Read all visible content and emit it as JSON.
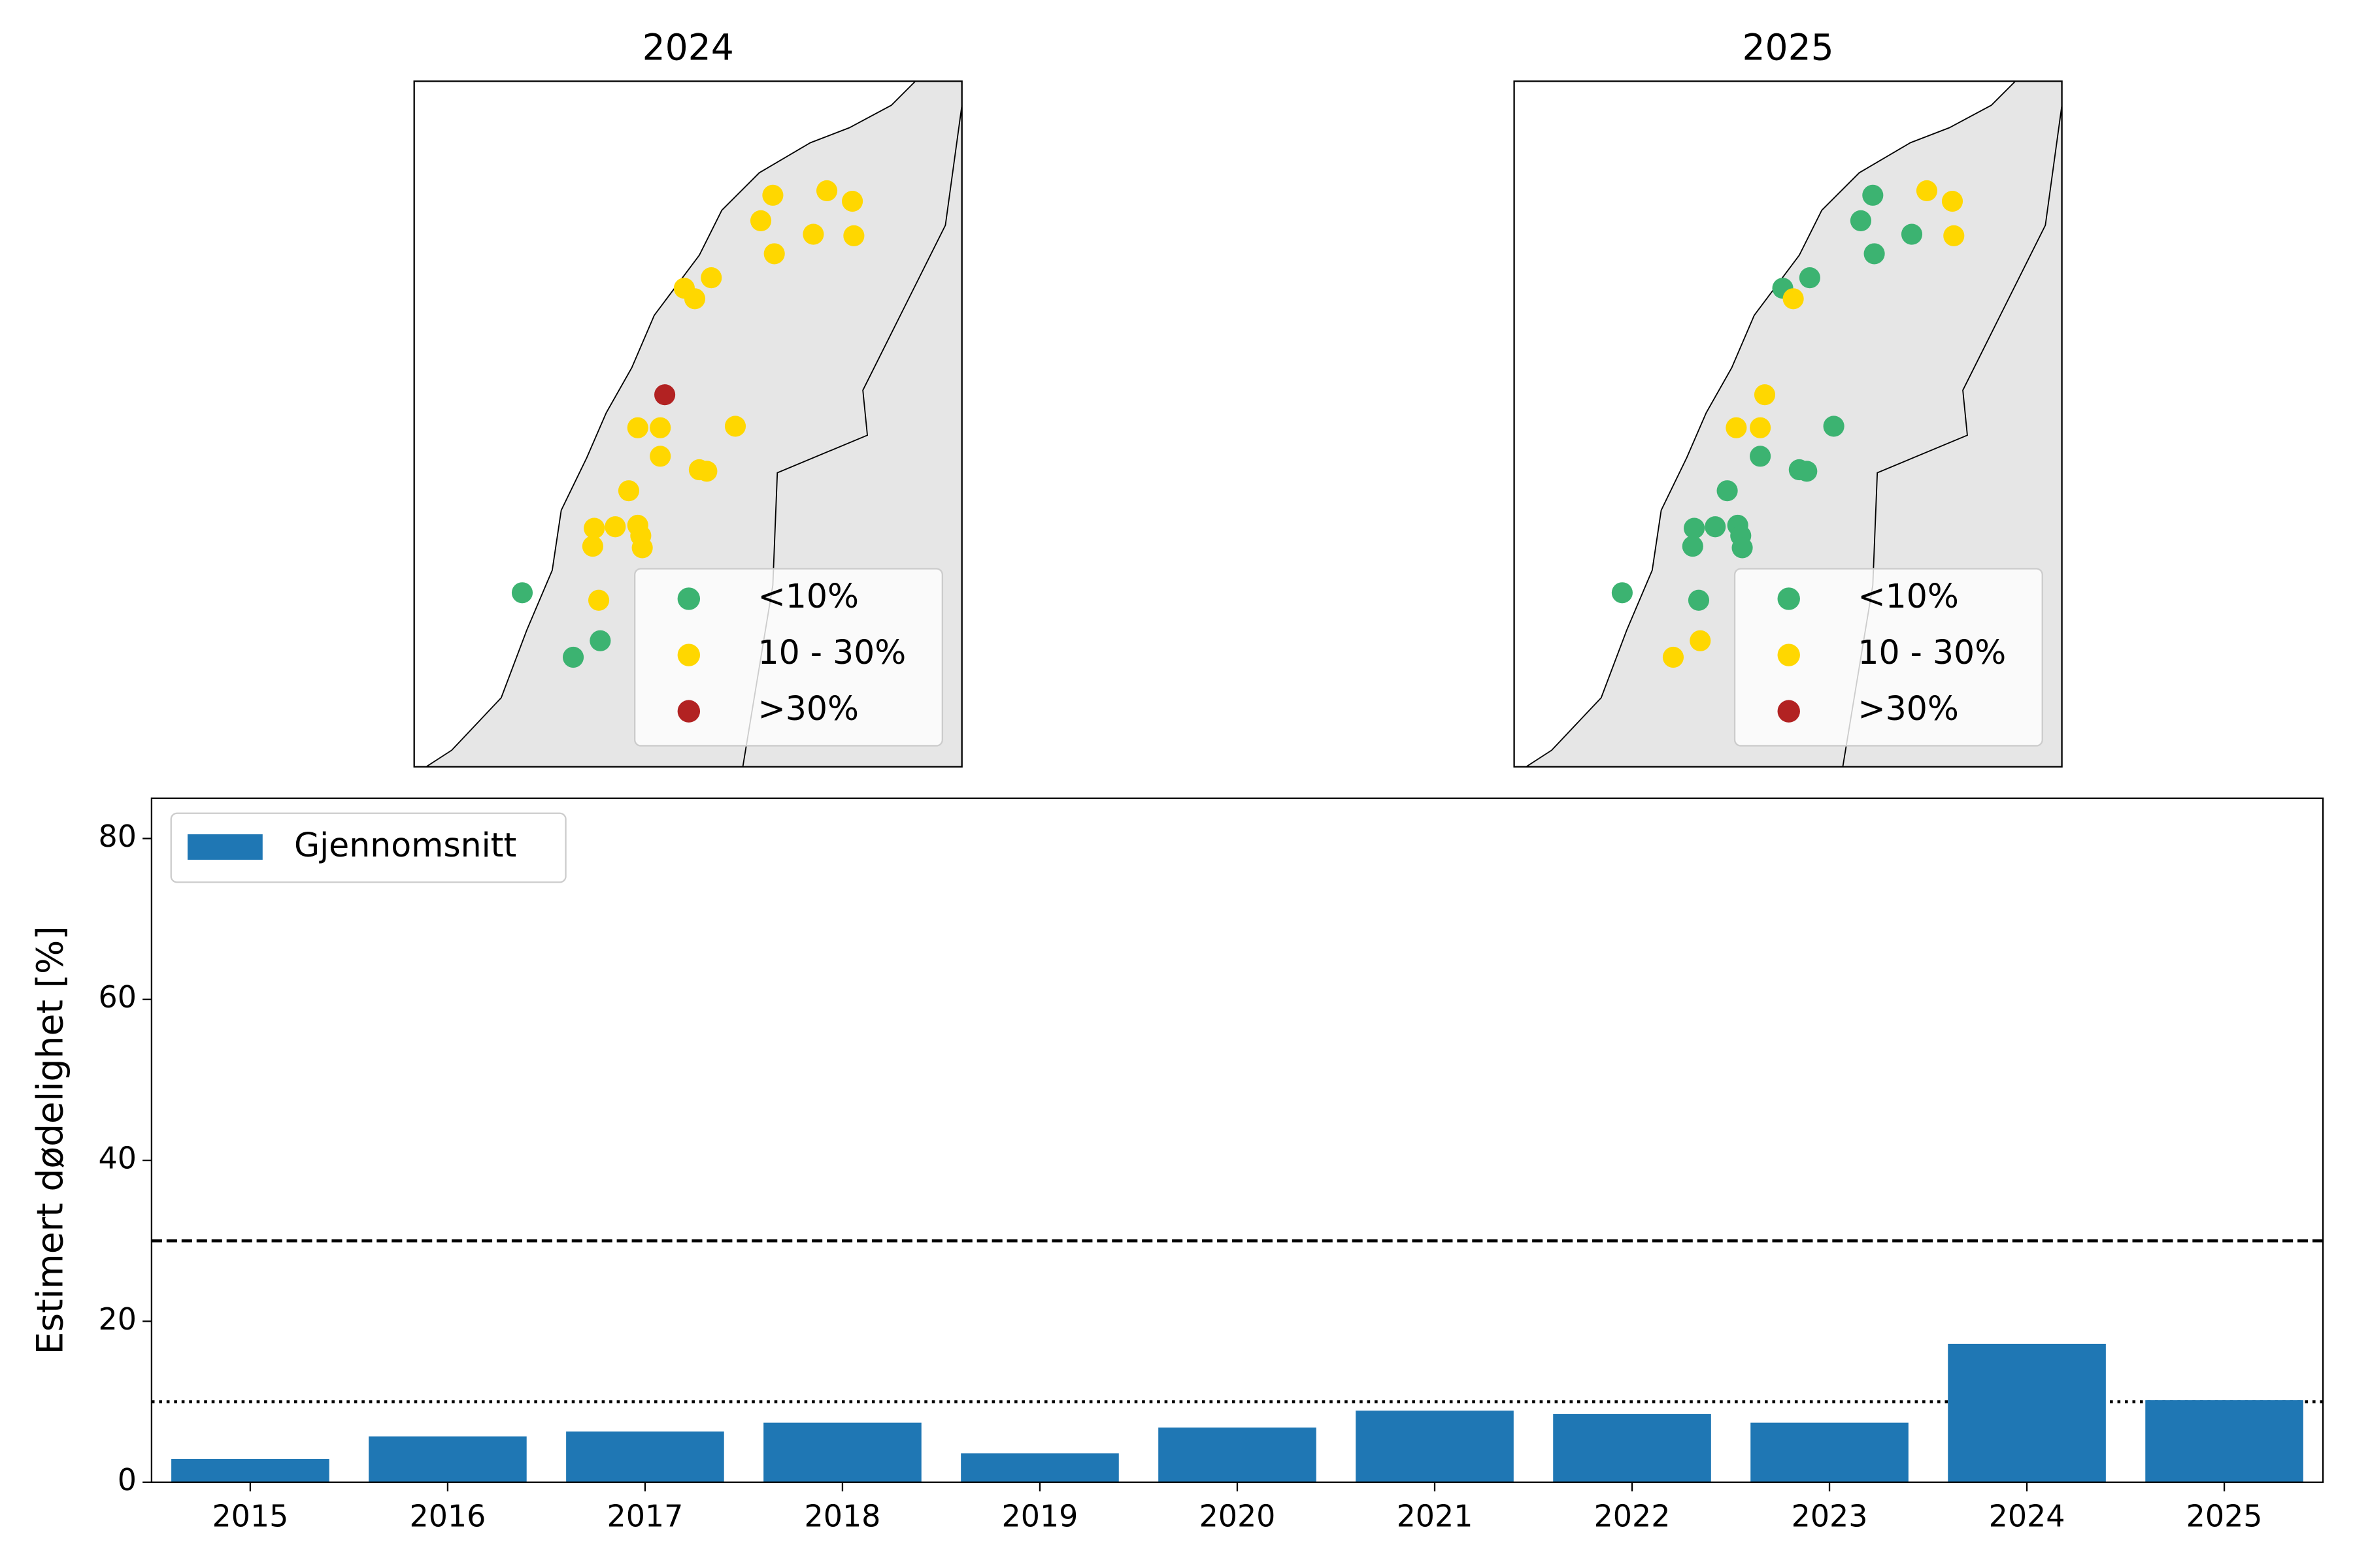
{
  "chart_data": [
    {
      "type": "map",
      "title": "2024",
      "series": [
        {
          "name": "<10%",
          "color": "#3cb371"
        },
        {
          "name": "10 - 30%",
          "color": "#ffd700"
        },
        {
          "name": ">30%",
          "color": "#b22222"
        }
      ]
    },
    {
      "type": "map",
      "title": "2025",
      "series": [
        {
          "name": "<10%",
          "color": "#3cb371"
        },
        {
          "name": "10 - 30%",
          "color": "#ffd700"
        },
        {
          "name": ">30%",
          "color": "#b22222"
        }
      ]
    },
    {
      "type": "bar",
      "y_label": "Estimert dødelighet [%]",
      "categories": [
        "2015",
        "2016",
        "2017",
        "2018",
        "2019",
        "2020",
        "2021",
        "2022",
        "2023",
        "2024",
        "2025"
      ],
      "series": [
        {
          "name": "Gjennomsnitt",
          "color": "#1f77b4",
          "values": [
            2.9,
            5.7,
            6.3,
            7.4,
            3.6,
            6.8,
            8.9,
            8.5,
            7.4,
            17.2,
            10.2
          ]
        }
      ],
      "ylim": [
        0,
        85
      ],
      "yticks": [
        0,
        20,
        40,
        60,
        80
      ],
      "hlines": [
        {
          "value": 30,
          "style": "dashed"
        },
        {
          "value": 10,
          "style": "dotted"
        }
      ],
      "legend": "upper left"
    }
  ]
}
